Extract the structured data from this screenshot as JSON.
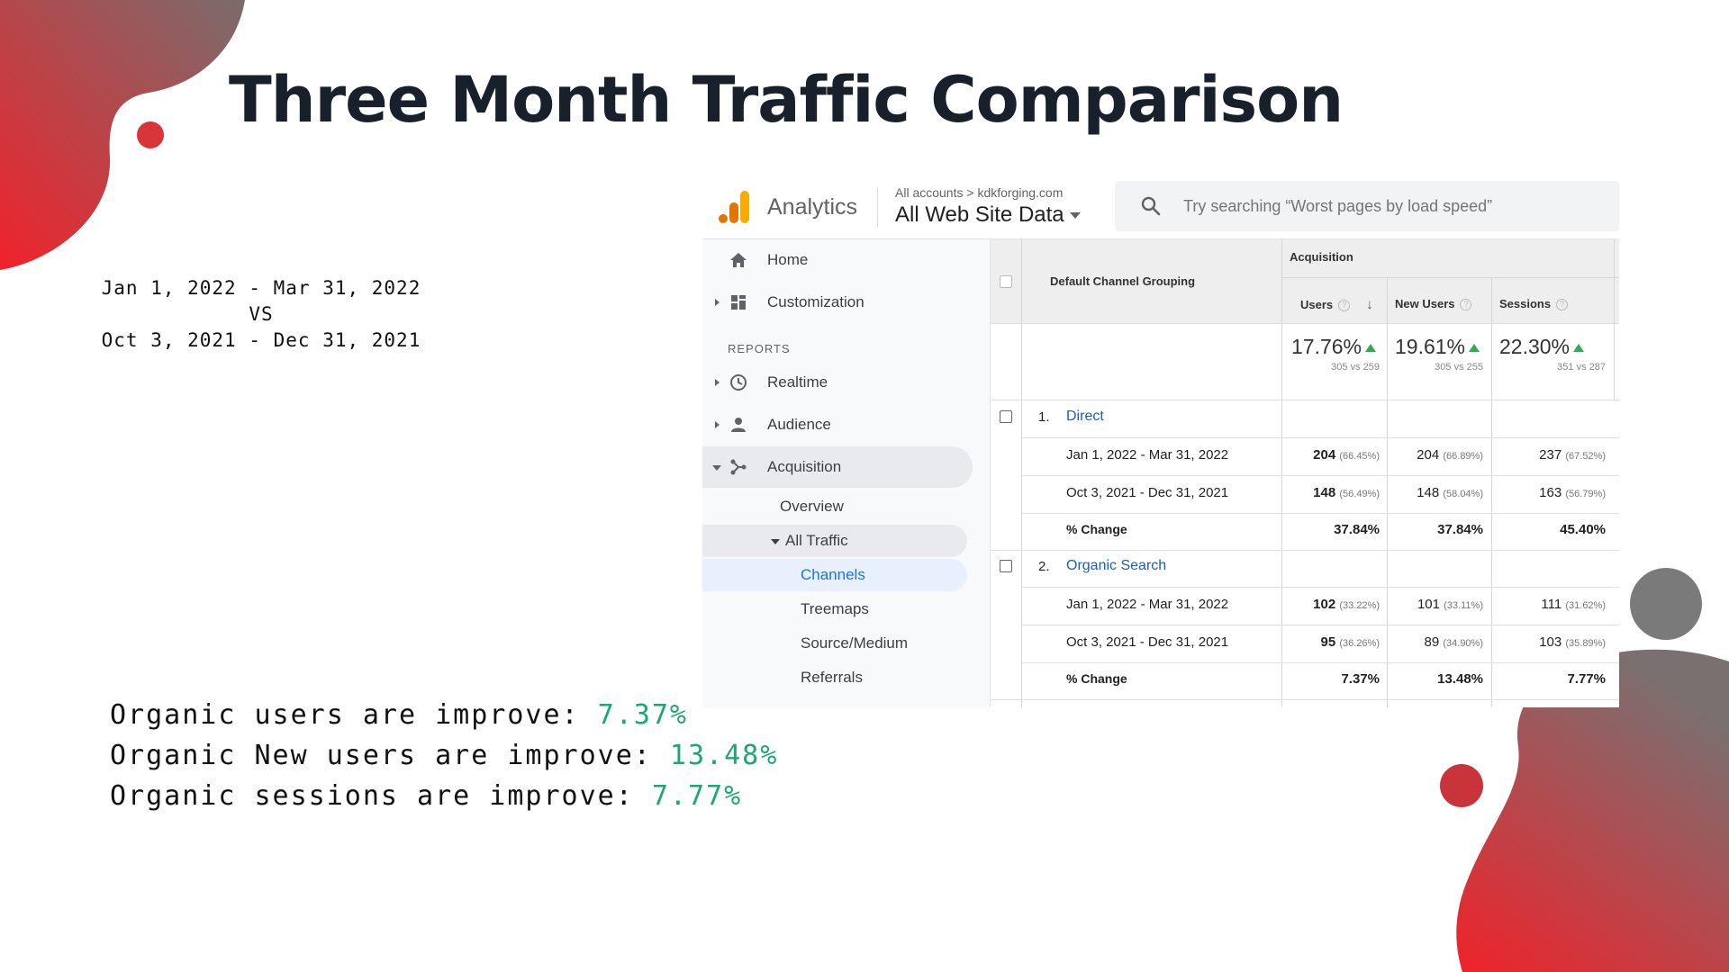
{
  "slide": {
    "title": "Three Month Traffic Comparison",
    "date_range_current": "Jan 1, 2022 - Mar 31, 2022",
    "vs": "VS",
    "date_range_previous": "Oct 3, 2021 - Dec 31, 2021",
    "findings": [
      {
        "label": "Organic users are improve: ",
        "value": "7.37%"
      },
      {
        "label": "Organic New users are improve: ",
        "value": "13.48%"
      },
      {
        "label": "Organic sessions are improve: ",
        "value": "7.77%"
      }
    ],
    "colors": {
      "accent_red": "#e8262d",
      "accent_gray": "#7a7a7a",
      "highlight_green": "#1aa872",
      "title_dark": "#17202b"
    }
  },
  "analytics": {
    "brand": "Analytics",
    "breadcrumb_all": "All accounts",
    "breadcrumb_sep": ">",
    "breadcrumb_account": "kdkforging.com",
    "view_name": "All Web Site Data",
    "search_placeholder": "Try searching “Worst pages by load speed”",
    "nav": {
      "home": "Home",
      "customization": "Customization",
      "reports_section": "REPORTS",
      "realtime": "Realtime",
      "audience": "Audience",
      "acquisition": "Acquisition",
      "overview": "Overview",
      "all_traffic": "All Traffic",
      "channels": "Channels",
      "treemaps": "Treemaps",
      "source_medium": "Source/Medium",
      "referrals": "Referrals"
    },
    "table": {
      "dimension_header": "Default Channel Grouping",
      "group_header": "Acquisition",
      "columns": [
        "Users",
        "New Users",
        "Sessions"
      ],
      "summary": [
        {
          "pct": "17.76%",
          "sub": "305 vs 259"
        },
        {
          "pct": "19.61%",
          "sub": "305 vs 255"
        },
        {
          "pct": "22.30%",
          "sub": "351 vs 287"
        }
      ],
      "channels": [
        {
          "index": "1.",
          "name": "Direct",
          "rows": [
            {
              "label": "Jan 1, 2022 - Mar 31, 2022",
              "users": "204",
              "users_pct": "(66.45%)",
              "new_users": "204",
              "new_users_pct": "(66.89%)",
              "sessions": "237",
              "sessions_pct": "(67.52%)"
            },
            {
              "label": "Oct 3, 2021 - Dec 31, 2021",
              "users": "148",
              "users_pct": "(56.49%)",
              "new_users": "148",
              "new_users_pct": "(58.04%)",
              "sessions": "163",
              "sessions_pct": "(56.79%)"
            }
          ],
          "change": {
            "label": "% Change",
            "users": "37.84%",
            "new_users": "37.84%",
            "sessions": "45.40%"
          }
        },
        {
          "index": "2.",
          "name": "Organic Search",
          "rows": [
            {
              "label": "Jan 1, 2022 - Mar 31, 2022",
              "users": "102",
              "users_pct": "(33.22%)",
              "new_users": "101",
              "new_users_pct": "(33.11%)",
              "sessions": "111",
              "sessions_pct": "(31.62%)"
            },
            {
              "label": "Oct 3, 2021 - Dec 31, 2021",
              "users": "95",
              "users_pct": "(36.26%)",
              "new_users": "89",
              "new_users_pct": "(34.90%)",
              "sessions": "103",
              "sessions_pct": "(35.89%)"
            }
          ],
          "change": {
            "label": "% Change",
            "users": "7.37%",
            "new_users": "13.48%",
            "sessions": "7.77%"
          }
        }
      ]
    }
  }
}
